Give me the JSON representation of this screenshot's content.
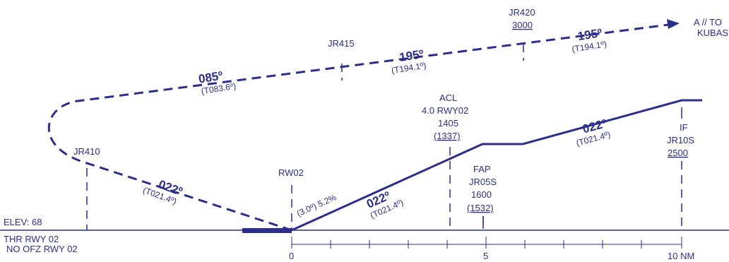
{
  "colors": {
    "ink": "#2b2e8a"
  },
  "elevation": "ELEV: 68",
  "threshold": [
    "THR RWY 02",
    "NO OFZ RWY 02"
  ],
  "axis": {
    "ticks": [
      "0",
      "5",
      "10 NM"
    ],
    "from_nm": 0,
    "to_nm": 10
  },
  "missed_approach": {
    "destination": [
      "A // TO",
      "KUBAS"
    ],
    "legs": [
      {
        "course": "085º",
        "true_course": "(T083.6º)"
      },
      {
        "course": "195º",
        "true_course": "(T194.1º)"
      },
      {
        "course": "195º",
        "true_course": "(T194.1º)"
      }
    ]
  },
  "fixes": {
    "jr415": {
      "name": "JR415"
    },
    "jr420": {
      "name": "JR420",
      "altitude": "3000"
    },
    "jr410": {
      "name": "JR410"
    },
    "rw02": {
      "name": "RW02"
    },
    "acl": {
      "lines": [
        "ACL",
        "4.0 RWY02",
        "1405"
      ],
      "height": "(1337)"
    },
    "fap": {
      "lines": [
        "FAP",
        "JR05S",
        "1600"
      ],
      "height": "(1532)"
    },
    "if": {
      "lines": [
        "IF",
        "JR10S"
      ],
      "altitude": "2500"
    }
  },
  "approach": {
    "glidepath": "(3.0º) 5.2%",
    "legs": [
      {
        "course": "022º",
        "true_course": "(T021.4º)"
      },
      {
        "course": "022º",
        "true_course": "(T021.4º)"
      },
      {
        "course": "022º",
        "true_course": "(T021.4º)"
      }
    ]
  }
}
